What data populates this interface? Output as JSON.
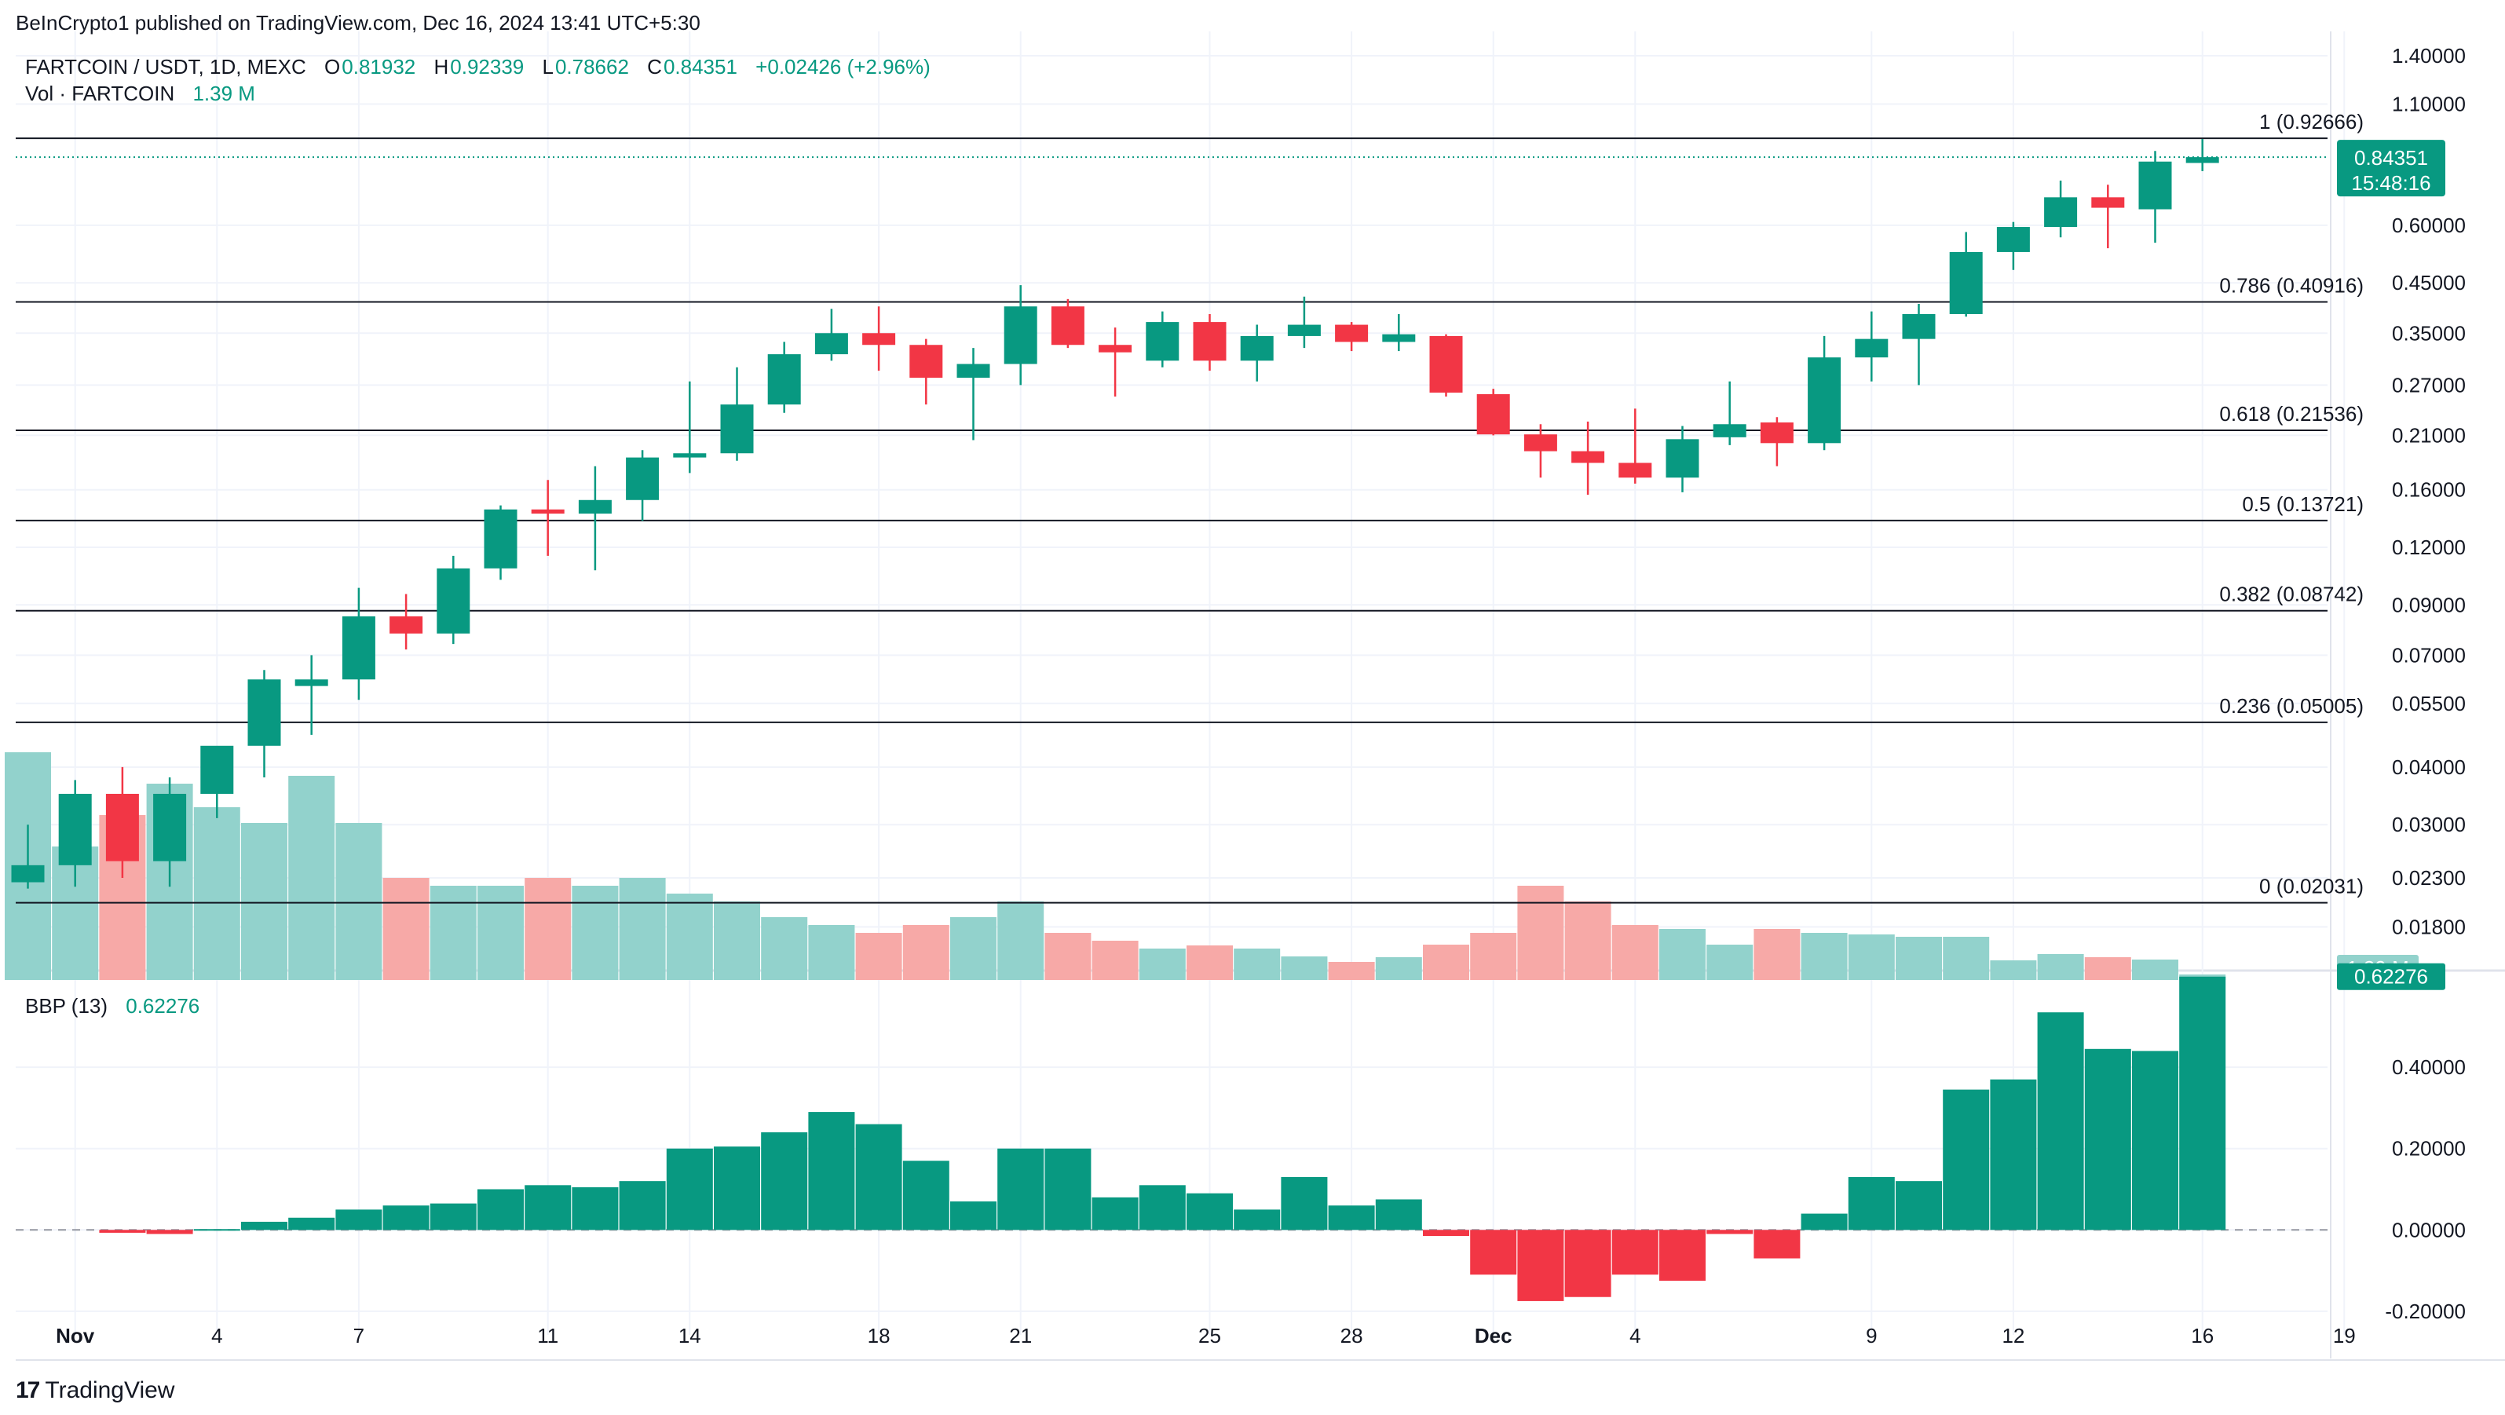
{
  "header": {
    "published": "BeInCrypto1 published on TradingView.com, Dec 16, 2024 13:41 UTC+5:30",
    "symbol": "FARTCOIN / USDT, 1D, MEXC",
    "o_label": "O",
    "o_value": "0.81932",
    "h_label": "H",
    "h_value": "0.92339",
    "l_label": "L",
    "l_value": "0.78662",
    "c_label": "C",
    "c_value": "0.84351",
    "change": "+0.02426 (+2.96%)",
    "vol_label": "Vol · FARTCOIN",
    "vol_value": "1.39 M",
    "bbp_label": "BBP (13)",
    "bbp_value": "0.62276"
  },
  "brand": {
    "logo": "17",
    "name": "TradingView"
  },
  "colors": {
    "up": "#089981",
    "down": "#f23645",
    "vol_up": "#92d2cc",
    "vol_down": "#f7a9a7"
  },
  "chart_data": [
    {
      "type": "candlestick",
      "title": "FARTCOIN / USDT, 1D, MEXC",
      "scale": "log",
      "ylim": [
        0.0147,
        1.485
      ],
      "y_ticks": [
        "1.40000",
        "1.10000",
        "0.60000",
        "0.45000",
        "0.35000",
        "0.27000",
        "0.21000",
        "0.16000",
        "0.12000",
        "0.09000",
        "0.07000",
        "0.05500",
        "0.04000",
        "0.03000",
        "0.02300",
        "0.01800"
      ],
      "x_ticks": [
        {
          "label": "Nov",
          "idx": 1
        },
        {
          "label": "4",
          "idx": 4
        },
        {
          "label": "7",
          "idx": 7
        },
        {
          "label": "11",
          "idx": 11
        },
        {
          "label": "14",
          "idx": 14
        },
        {
          "label": "18",
          "idx": 18
        },
        {
          "label": "21",
          "idx": 21
        },
        {
          "label": "25",
          "idx": 25
        },
        {
          "label": "28",
          "idx": 28
        },
        {
          "label": "Dec",
          "idx": 31
        },
        {
          "label": "4",
          "idx": 34
        },
        {
          "label": "9",
          "idx": 39
        },
        {
          "label": "12",
          "idx": 42
        },
        {
          "label": "16",
          "idx": 46
        },
        {
          "label": "19",
          "idx": 49
        }
      ],
      "ohlc": [
        [
          0.0225,
          0.03,
          0.0218,
          0.0245
        ],
        [
          0.0245,
          0.0375,
          0.022,
          0.035
        ],
        [
          0.035,
          0.04,
          0.023,
          0.025
        ],
        [
          0.025,
          0.038,
          0.022,
          0.035
        ],
        [
          0.035,
          0.044,
          0.031,
          0.0445
        ],
        [
          0.0445,
          0.065,
          0.038,
          0.062
        ],
        [
          0.06,
          0.07,
          0.047,
          0.062
        ],
        [
          0.062,
          0.098,
          0.056,
          0.085
        ],
        [
          0.085,
          0.095,
          0.072,
          0.078
        ],
        [
          0.078,
          0.115,
          0.074,
          0.108
        ],
        [
          0.108,
          0.148,
          0.102,
          0.145
        ],
        [
          0.145,
          0.168,
          0.115,
          0.142
        ],
        [
          0.142,
          0.18,
          0.107,
          0.152
        ],
        [
          0.152,
          0.195,
          0.137,
          0.188
        ],
        [
          0.188,
          0.275,
          0.174,
          0.192
        ],
        [
          0.192,
          0.295,
          0.185,
          0.245
        ],
        [
          0.245,
          0.335,
          0.235,
          0.315
        ],
        [
          0.315,
          0.395,
          0.305,
          0.35
        ],
        [
          0.35,
          0.4,
          0.29,
          0.33
        ],
        [
          0.33,
          0.34,
          0.245,
          0.28
        ],
        [
          0.28,
          0.325,
          0.205,
          0.3
        ],
        [
          0.3,
          0.445,
          0.27,
          0.4
        ],
        [
          0.4,
          0.415,
          0.325,
          0.33
        ],
        [
          0.33,
          0.36,
          0.255,
          0.318
        ],
        [
          0.305,
          0.39,
          0.295,
          0.37
        ],
        [
          0.37,
          0.385,
          0.29,
          0.305
        ],
        [
          0.305,
          0.365,
          0.275,
          0.345
        ],
        [
          0.345,
          0.42,
          0.325,
          0.365
        ],
        [
          0.365,
          0.37,
          0.32,
          0.335
        ],
        [
          0.335,
          0.385,
          0.32,
          0.348
        ],
        [
          0.345,
          0.348,
          0.255,
          0.26
        ],
        [
          0.258,
          0.265,
          0.21,
          0.211
        ],
        [
          0.211,
          0.222,
          0.17,
          0.194
        ],
        [
          0.194,
          0.225,
          0.156,
          0.183
        ],
        [
          0.183,
          0.24,
          0.165,
          0.17
        ],
        [
          0.17,
          0.22,
          0.158,
          0.206
        ],
        [
          0.208,
          0.275,
          0.2,
          0.222
        ],
        [
          0.224,
          0.23,
          0.18,
          0.202
        ],
        [
          0.202,
          0.345,
          0.195,
          0.31
        ],
        [
          0.31,
          0.39,
          0.275,
          0.34
        ],
        [
          0.34,
          0.405,
          0.27,
          0.385
        ],
        [
          0.385,
          0.58,
          0.38,
          0.525
        ],
        [
          0.525,
          0.61,
          0.48,
          0.595
        ],
        [
          0.595,
          0.75,
          0.565,
          0.69
        ],
        [
          0.69,
          0.735,
          0.535,
          0.655
        ],
        [
          0.65,
          0.87,
          0.55,
          0.825
        ],
        [
          0.8193,
          0.9234,
          0.7866,
          0.8435
        ]
      ],
      "price_label": "0.84351",
      "countdown_label": "15:48:16",
      "fib_levels": [
        {
          "label": "1 (0.92666)",
          "value": 0.92666
        },
        {
          "label": "0.786 (0.40916)",
          "value": 0.40916
        },
        {
          "label": "0.618 (0.21536)",
          "value": 0.21536
        },
        {
          "label": "0.5 (0.13721)",
          "value": 0.13721
        },
        {
          "label": "0.382 (0.08742)",
          "value": 0.08742
        },
        {
          "label": "0.236 (0.05005)",
          "value": 0.05005
        },
        {
          "label": "0 (0.02031)",
          "value": 0.02031
        }
      ],
      "volume_label": "1.39 M",
      "volume": [
        29,
        17,
        21,
        25,
        22,
        20,
        26,
        20,
        13,
        12,
        12,
        13,
        12,
        13,
        11,
        10,
        8,
        7,
        6,
        7,
        8,
        10,
        6,
        5,
        4,
        4.4,
        4,
        3,
        2.3,
        2.9,
        4.5,
        6,
        12,
        10,
        7,
        6.5,
        4.5,
        6.5,
        6,
        5.8,
        5.5,
        5.5,
        2.5,
        3.3,
        2.9,
        2.6,
        0.7
      ],
      "volume_max": 30
    },
    {
      "type": "bar",
      "title": "BBP (13)",
      "ylim": [
        -0.235,
        0.63
      ],
      "y_ticks": [
        "0.40000",
        "0.20000",
        "0.00000",
        "-0.20000"
      ],
      "current_label": "0.62276",
      "values": [
        0,
        0,
        -0.007,
        -0.01,
        0.002,
        0.02,
        0.03,
        0.05,
        0.06,
        0.065,
        0.1,
        0.11,
        0.105,
        0.12,
        0.2,
        0.205,
        0.24,
        0.29,
        0.26,
        0.17,
        0.07,
        0.2,
        0.2,
        0.08,
        0.11,
        0.09,
        0.05,
        0.13,
        0.06,
        0.075,
        -0.015,
        -0.11,
        -0.175,
        -0.165,
        -0.11,
        -0.125,
        -0.01,
        -0.07,
        0.04,
        0.13,
        0.12,
        0.345,
        0.37,
        0.535,
        0.445,
        0.44,
        0.62276
      ]
    }
  ]
}
